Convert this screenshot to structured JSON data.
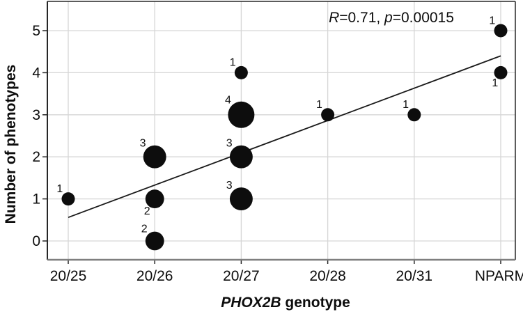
{
  "figure": {
    "annotation": {
      "full": "R=0.71, p=0.00015",
      "r_italic": "R",
      "r_rest": "=0.71, ",
      "p_italic": "p",
      "p_rest": "=0.00015"
    },
    "x_axis": {
      "title_full": "PHOX2B genotype",
      "title_italic": "PHOX2B",
      "title_rest": " genotype"
    },
    "y_axis": {
      "title": "Number of phenotypes",
      "ticks": [
        "0",
        "1",
        "2",
        "3",
        "4",
        "5"
      ]
    },
    "colors": {
      "bubble": "#0d0d0d",
      "trend_line": "#1a1a1a",
      "gridline": "#d6d6d6",
      "plot_border": "#262626",
      "bottom_axis_line": "#7f7f7f",
      "text": "#0d0d0d",
      "background": "#ffffff"
    }
  },
  "chart_data": {
    "type": "scatter",
    "subtype": "bubble",
    "title": "",
    "xlabel": "PHOX2B genotype",
    "ylabel": "Number of phenotypes",
    "categories": [
      "20/25",
      "20/26",
      "20/27",
      "20/28",
      "20/31",
      "NPARM"
    ],
    "y_ticks": [
      0,
      1,
      2,
      3,
      4,
      5
    ],
    "ylim": [
      -0.45,
      5.7
    ],
    "grid": true,
    "legend": "none",
    "annotation": "R=0.71, p=0.00015",
    "bubble_size_rule": "area proportional to count of subjects",
    "points": [
      {
        "genotype": "20/25",
        "phenotypes": 1,
        "count": 1,
        "label": "1",
        "label_side": "above"
      },
      {
        "genotype": "20/26",
        "phenotypes": 2,
        "count": 3,
        "label": "3",
        "label_side": "above"
      },
      {
        "genotype": "20/26",
        "phenotypes": 1,
        "count": 2,
        "label": "2",
        "label_side": "below"
      },
      {
        "genotype": "20/26",
        "phenotypes": 0,
        "count": 2,
        "label": "2",
        "label_side": "above"
      },
      {
        "genotype": "20/27",
        "phenotypes": 4,
        "count": 1,
        "label": "1",
        "label_side": "above"
      },
      {
        "genotype": "20/27",
        "phenotypes": 3,
        "count": 4,
        "label": "4",
        "label_side": "above"
      },
      {
        "genotype": "20/27",
        "phenotypes": 2,
        "count": 3,
        "label": "3",
        "label_side": "above"
      },
      {
        "genotype": "20/27",
        "phenotypes": 1,
        "count": 3,
        "label": "3",
        "label_side": "above"
      },
      {
        "genotype": "20/28",
        "phenotypes": 3,
        "count": 1,
        "label": "1",
        "label_side": "above"
      },
      {
        "genotype": "20/31",
        "phenotypes": 3,
        "count": 1,
        "label": "1",
        "label_side": "above"
      },
      {
        "genotype": "NPARM",
        "phenotypes": 5,
        "count": 1,
        "label": "1",
        "label_side": "above"
      },
      {
        "genotype": "NPARM",
        "phenotypes": 4,
        "count": 1,
        "label": "1",
        "label_side": "below"
      }
    ],
    "trend_line": {
      "x_start_category_index": 0,
      "y_start_value": 0.56,
      "x_end_category_index": 5,
      "y_end_value": 4.4
    }
  }
}
